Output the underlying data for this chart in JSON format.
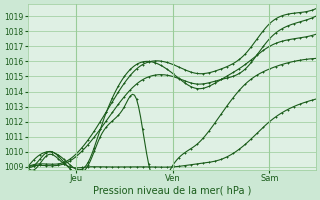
{
  "title": "",
  "xlabel": "Pression niveau de la mer( hPa )",
  "ylabel": "",
  "ylim": [
    1008.8,
    1019.8
  ],
  "xlim": [
    0,
    143
  ],
  "yticks": [
    1009,
    1010,
    1011,
    1012,
    1013,
    1014,
    1015,
    1016,
    1017,
    1018,
    1019
  ],
  "xtick_positions": [
    24,
    72,
    120
  ],
  "xtick_labels": [
    "Jeu",
    "Ven",
    "Sam"
  ],
  "bg_color": "#cce8d4",
  "plot_bg_color": "#dff0e4",
  "grid_color": "#99cc99",
  "line_color": "#1a5c1a",
  "base_pressure": 1009,
  "n_points": 144,
  "series": [
    {
      "x": [
        0,
        6,
        18,
        36,
        54,
        72,
        84,
        96,
        108,
        120,
        132,
        143
      ],
      "y": [
        1009.0,
        1009.2,
        1009.3,
        1012.0,
        1015.5,
        1015.8,
        1015.2,
        1015.5,
        1016.5,
        1018.5,
        1019.2,
        1019.5
      ]
    },
    {
      "x": [
        0,
        6,
        18,
        36,
        54,
        72,
        84,
        96,
        108,
        120,
        132,
        143
      ],
      "y": [
        1009.0,
        1009.1,
        1009.2,
        1011.5,
        1014.5,
        1015.0,
        1014.5,
        1014.8,
        1015.5,
        1017.5,
        1018.5,
        1019.0
      ]
    },
    {
      "x": [
        0,
        6,
        10,
        18,
        30,
        36,
        54,
        60,
        72,
        84,
        96,
        108,
        120,
        132,
        143
      ],
      "y": [
        1009.0,
        1009.8,
        1010.0,
        1009.5,
        1009.3,
        1011.5,
        1015.8,
        1016.0,
        1015.2,
        1014.2,
        1014.8,
        1015.8,
        1017.0,
        1017.5,
        1017.8
      ]
    },
    {
      "x": [
        0,
        6,
        10,
        18,
        30,
        36,
        48,
        54,
        60,
        72,
        84,
        96,
        108,
        120,
        132,
        143
      ],
      "y": [
        1009.0,
        1009.5,
        1010.0,
        1009.3,
        1009.1,
        1011.0,
        1013.0,
        1013.5,
        1009.2,
        1009.1,
        1010.5,
        1012.5,
        1014.5,
        1015.5,
        1016.0,
        1016.2
      ]
    },
    {
      "x": [
        0,
        6,
        10,
        18,
        30,
        36,
        48,
        54,
        60,
        72,
        84,
        96,
        108,
        120,
        132,
        143
      ],
      "y": [
        1009.0,
        1009.2,
        1009.8,
        1009.2,
        1009.0,
        1009.0,
        1009.0,
        1009.0,
        1009.0,
        1009.0,
        1009.2,
        1009.5,
        1010.5,
        1012.0,
        1013.0,
        1013.5
      ]
    }
  ]
}
